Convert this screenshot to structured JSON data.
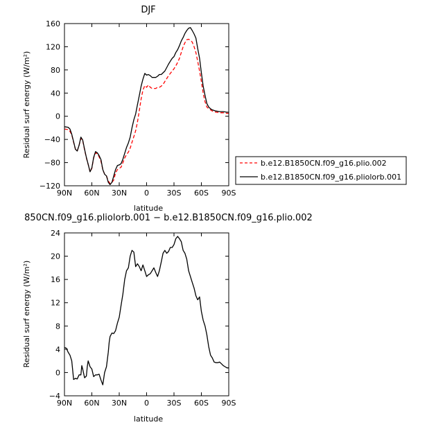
{
  "chart_data": [
    {
      "type": "line",
      "title": "DJF",
      "xlabel": "latitude",
      "ylabel": "Residual surf energy (W/m²)",
      "xlim": [
        90,
        -90
      ],
      "ylim": [
        -120,
        160
      ],
      "x_ticks": [
        90,
        60,
        30,
        0,
        -30,
        -60,
        -90
      ],
      "x_tick_labels": [
        "90N",
        "60N",
        "30N",
        "0",
        "30S",
        "60S",
        "90S"
      ],
      "y_ticks": [
        -120,
        -80,
        -40,
        0,
        40,
        80,
        120,
        160
      ],
      "y_tick_labels": [
        "−120",
        "−80",
        "−40",
        "0",
        "40",
        "80",
        "120",
        "160"
      ],
      "legend_position": "right",
      "series": [
        {
          "name": "b.e12.B1850CN.f09_g16.plio.002",
          "color": "#ff0000",
          "style": "dashed",
          "x": [
            90,
            86,
            84,
            82,
            80,
            78,
            76,
            74,
            72,
            70,
            68,
            66,
            64,
            62,
            60,
            58,
            56,
            54,
            52,
            50,
            48,
            46,
            44,
            42,
            40,
            38,
            36,
            34,
            32,
            30,
            28,
            26,
            24,
            22,
            20,
            18,
            16,
            14,
            12,
            10,
            8,
            6,
            4,
            2,
            0,
            -2,
            -4,
            -6,
            -8,
            -10,
            -12,
            -14,
            -16,
            -18,
            -20,
            -22,
            -24,
            -26,
            -28,
            -30,
            -32,
            -34,
            -36,
            -38,
            -40,
            -42,
            -44,
            -46,
            -48,
            -50,
            -52,
            -54,
            -56,
            -58,
            -60,
            -62,
            -64,
            -66,
            -68,
            -70,
            -72,
            -74,
            -76,
            -80,
            -84,
            -88,
            -90
          ],
          "y": [
            -22,
            -23,
            -26,
            -32,
            -45,
            -57,
            -60,
            -50,
            -38,
            -42,
            -58,
            -72,
            -83,
            -96,
            -90,
            -72,
            -63,
            -65,
            -70,
            -78,
            -92,
            -100,
            -103,
            -112,
            -116,
            -114,
            -110,
            -98,
            -92,
            -90,
            -88,
            -80,
            -72,
            -66,
            -62,
            -55,
            -45,
            -35,
            -25,
            -10,
            10,
            30,
            45,
            53,
            50,
            54,
            50,
            48,
            48,
            48,
            50,
            50,
            52,
            55,
            60,
            65,
            70,
            74,
            78,
            82,
            87,
            93,
            100,
            110,
            120,
            127,
            132,
            133,
            131,
            128,
            120,
            110,
            95,
            78,
            60,
            40,
            25,
            16,
            13,
            11,
            9,
            8,
            7,
            6,
            6,
            5,
            5
          ]
        },
        {
          "name": "b.e12.B1850CN.f09_g16.pliolorb.001",
          "color": "#000000",
          "style": "solid",
          "x": [
            90,
            86,
            84,
            82,
            80,
            78,
            76,
            74,
            72,
            70,
            68,
            66,
            64,
            62,
            60,
            58,
            56,
            54,
            52,
            50,
            48,
            46,
            44,
            42,
            40,
            38,
            36,
            34,
            32,
            30,
            28,
            26,
            24,
            22,
            20,
            18,
            16,
            14,
            12,
            10,
            8,
            6,
            4,
            2,
            0,
            -2,
            -4,
            -6,
            -8,
            -10,
            -12,
            -14,
            -16,
            -18,
            -20,
            -22,
            -24,
            -26,
            -28,
            -30,
            -32,
            -34,
            -36,
            -38,
            -40,
            -42,
            -44,
            -46,
            -48,
            -50,
            -52,
            -54,
            -56,
            -58,
            -60,
            -62,
            -64,
            -66,
            -68,
            -70,
            -72,
            -74,
            -76,
            -80,
            -84,
            -88,
            -90
          ],
          "y": [
            -18,
            -19,
            -22,
            -31,
            -44,
            -57,
            -60,
            -50,
            -36,
            -41,
            -57,
            -71,
            -83,
            -96,
            -89,
            -71,
            -61,
            -63,
            -68,
            -75,
            -92,
            -100,
            -103,
            -114,
            -118,
            -114,
            -103,
            -92,
            -85,
            -84,
            -82,
            -74,
            -64,
            -54,
            -46,
            -36,
            -20,
            -6,
            4,
            20,
            36,
            52,
            64,
            74,
            71,
            72,
            70,
            67,
            67,
            67,
            69,
            72,
            72,
            75,
            78,
            84,
            90,
            95,
            100,
            103,
            110,
            115,
            122,
            130,
            136,
            143,
            148,
            152,
            153,
            148,
            142,
            135,
            117,
            100,
            75,
            52,
            36,
            22,
            16,
            13,
            11,
            10,
            9,
            8,
            8,
            7,
            7
          ]
        }
      ]
    },
    {
      "type": "line",
      "title": "850CN.f09_g16.pliolorb.001 − b.e12.B1850CN.f09_g16.plio.002",
      "xlabel": "latitude",
      "ylabel": "Residual surf energy (W/m²)",
      "xlim": [
        90,
        -90
      ],
      "ylim": [
        -4,
        24
      ],
      "x_ticks": [
        90,
        60,
        30,
        0,
        -30,
        -60,
        -90
      ],
      "x_tick_labels": [
        "90N",
        "60N",
        "30N",
        "0",
        "30S",
        "60S",
        "90S"
      ],
      "y_ticks": [
        -4,
        0,
        4,
        8,
        12,
        16,
        20,
        24
      ],
      "y_tick_labels": [
        "−4",
        "0",
        "4",
        "8",
        "12",
        "16",
        "20",
        "24"
      ],
      "series": [
        {
          "color": "#000000",
          "style": "solid",
          "x": [
            90,
            88,
            86,
            84,
            82,
            80,
            78,
            76,
            74,
            72,
            71,
            70,
            68,
            66,
            65,
            64,
            62,
            60,
            58,
            56,
            54,
            52,
            50,
            48,
            46,
            44,
            42,
            41,
            40,
            38,
            36,
            34,
            32,
            30,
            28,
            26,
            24,
            22,
            20,
            18,
            16,
            14,
            12,
            10,
            8,
            6,
            4,
            2,
            0,
            -2,
            -4,
            -6,
            -8,
            -10,
            -12,
            -14,
            -16,
            -18,
            -20,
            -22,
            -24,
            -26,
            -28,
            -30,
            -32,
            -34,
            -36,
            -38,
            -40,
            -42,
            -44,
            -46,
            -48,
            -50,
            -52,
            -54,
            -56,
            -58,
            -60,
            -62,
            -64,
            -66,
            -68,
            -70,
            -72,
            -74,
            -76,
            -78,
            -80,
            -82,
            -84,
            -86,
            -88,
            -90
          ],
          "y": [
            4.3,
            4.2,
            3.5,
            3.0,
            2.0,
            -1.2,
            -1.0,
            -1.1,
            -0.4,
            -0.4,
            1.2,
            0.6,
            -0.9,
            -0.6,
            1.0,
            2.0,
            1.0,
            0.6,
            -0.7,
            -0.4,
            -0.4,
            -0.3,
            -1.3,
            -2.1,
            0.0,
            1.0,
            3.5,
            5.2,
            6.2,
            6.8,
            6.7,
            7.2,
            8.5,
            9.5,
            11.5,
            13.5,
            16.0,
            17.5,
            18.0,
            20.0,
            21.0,
            20.7,
            18.2,
            18.7,
            18.2,
            17.5,
            18.5,
            17.5,
            16.5,
            16.8,
            17.0,
            17.5,
            18.0,
            17.2,
            16.5,
            17.5,
            19.0,
            20.5,
            21.0,
            20.5,
            20.8,
            21.5,
            21.5,
            22.0,
            23.0,
            23.4,
            23.0,
            22.5,
            21.0,
            20.5,
            19.5,
            17.5,
            16.5,
            15.5,
            14.5,
            13.2,
            12.5,
            13.0,
            10.5,
            9.0,
            8.0,
            6.5,
            4.5,
            3.0,
            2.5,
            1.8,
            1.7,
            1.7,
            1.8,
            1.5,
            1.2,
            1.0,
            0.8,
            0.8
          ]
        }
      ]
    }
  ]
}
